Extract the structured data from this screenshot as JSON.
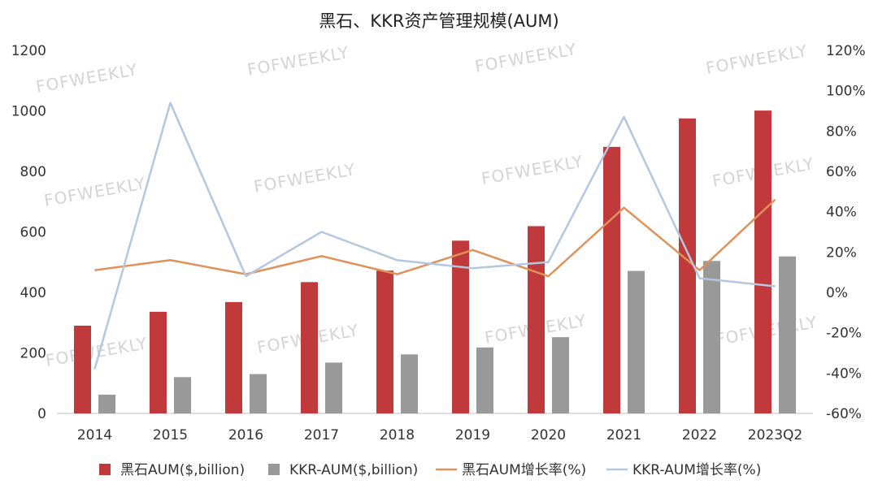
{
  "chart_data": {
    "type": "bar",
    "title": "黑石、KKR资产管理规模(AUM)",
    "categories": [
      "2014",
      "2015",
      "2016",
      "2017",
      "2018",
      "2019",
      "2020",
      "2021",
      "2022",
      "2023Q2"
    ],
    "y_left": {
      "ylim": [
        0,
        1200
      ],
      "ticks": [
        "0",
        "200",
        "400",
        "600",
        "800",
        "1000",
        "1200"
      ]
    },
    "y_right": {
      "ylim": [
        -60,
        120
      ],
      "ticks": [
        "-60%",
        "-40%",
        "-20%",
        "0%",
        "20%",
        "40%",
        "60%",
        "80%",
        "100%",
        "120%"
      ]
    },
    "series": [
      {
        "name": "黑石AUM($,billion)",
        "type": "bar",
        "axis": "left",
        "color": "#c0393b",
        "values": [
          290,
          336,
          368,
          434,
          472,
          571,
          619,
          881,
          975,
          1001
        ]
      },
      {
        "name": "KKR-AUM($,billion)",
        "type": "bar",
        "axis": "left",
        "color": "#999999",
        "values": [
          62,
          120,
          130,
          168,
          195,
          218,
          252,
          471,
          504,
          519
        ]
      },
      {
        "name": "黑石AUM增长率(%)",
        "type": "line",
        "axis": "right",
        "color": "#e0915a",
        "values": [
          11,
          16,
          9,
          18,
          9,
          21,
          8,
          42,
          11,
          46
        ]
      },
      {
        "name": "KKR-AUM增长率(%)",
        "type": "line",
        "axis": "right",
        "color": "#b4c7e0",
        "values": [
          -38,
          94,
          8,
          30,
          16,
          12,
          15,
          87,
          7,
          3
        ]
      }
    ],
    "legend_position": "bottom",
    "grid": false
  },
  "watermark": "FOFWEEKLY"
}
